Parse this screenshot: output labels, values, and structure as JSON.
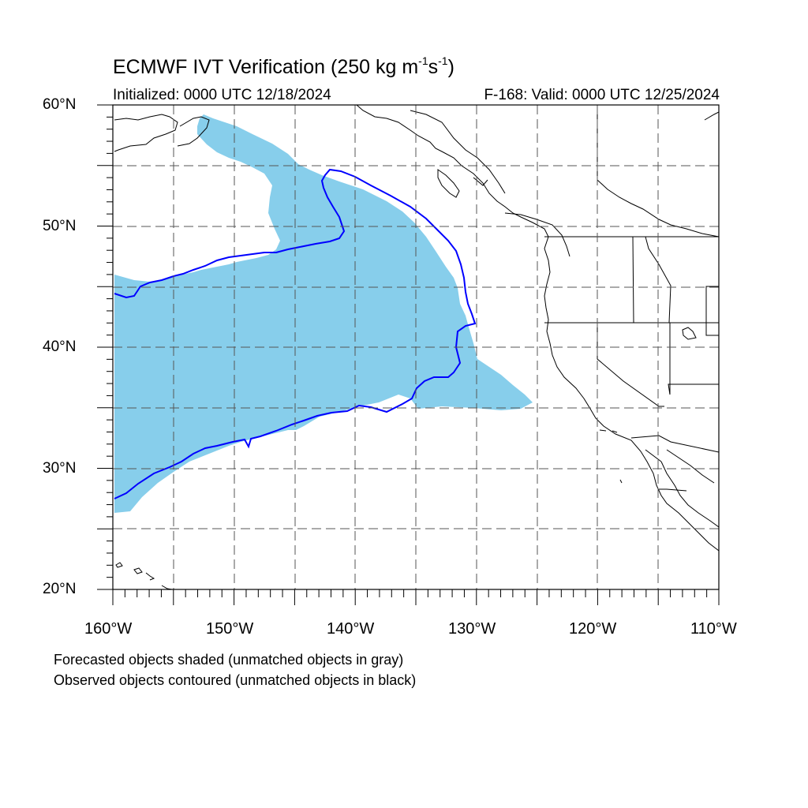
{
  "title": {
    "prefix": "ECMWF IVT Verification (250 kg m",
    "exp1": "-1",
    "mid": "s",
    "exp2": "-1",
    "suffix": ")"
  },
  "initialized": "Initialized: 0000 UTC 12/18/2024",
  "valid": "F-168: Valid: 0000 UTC 12/25/2024",
  "lat_labels": [
    "60°N",
    "50°N",
    "40°N",
    "30°N",
    "20°N"
  ],
  "lon_labels": [
    "160°W",
    "150°W",
    "140°W",
    "130°W",
    "120°W",
    "110°W"
  ],
  "footnotes": [
    "Forecasted objects shaded (unmatched objects in gray)",
    "Observed objects contoured (unmatched objects in black)"
  ],
  "colors": {
    "forecast_fill": "#87ceeb",
    "observed_contour": "#0000ff",
    "coastline": "#000000",
    "grid": "#555555"
  },
  "map_extent": {
    "lon_min": -160,
    "lon_max": -110,
    "lat_min": 20,
    "lat_max": 60
  }
}
